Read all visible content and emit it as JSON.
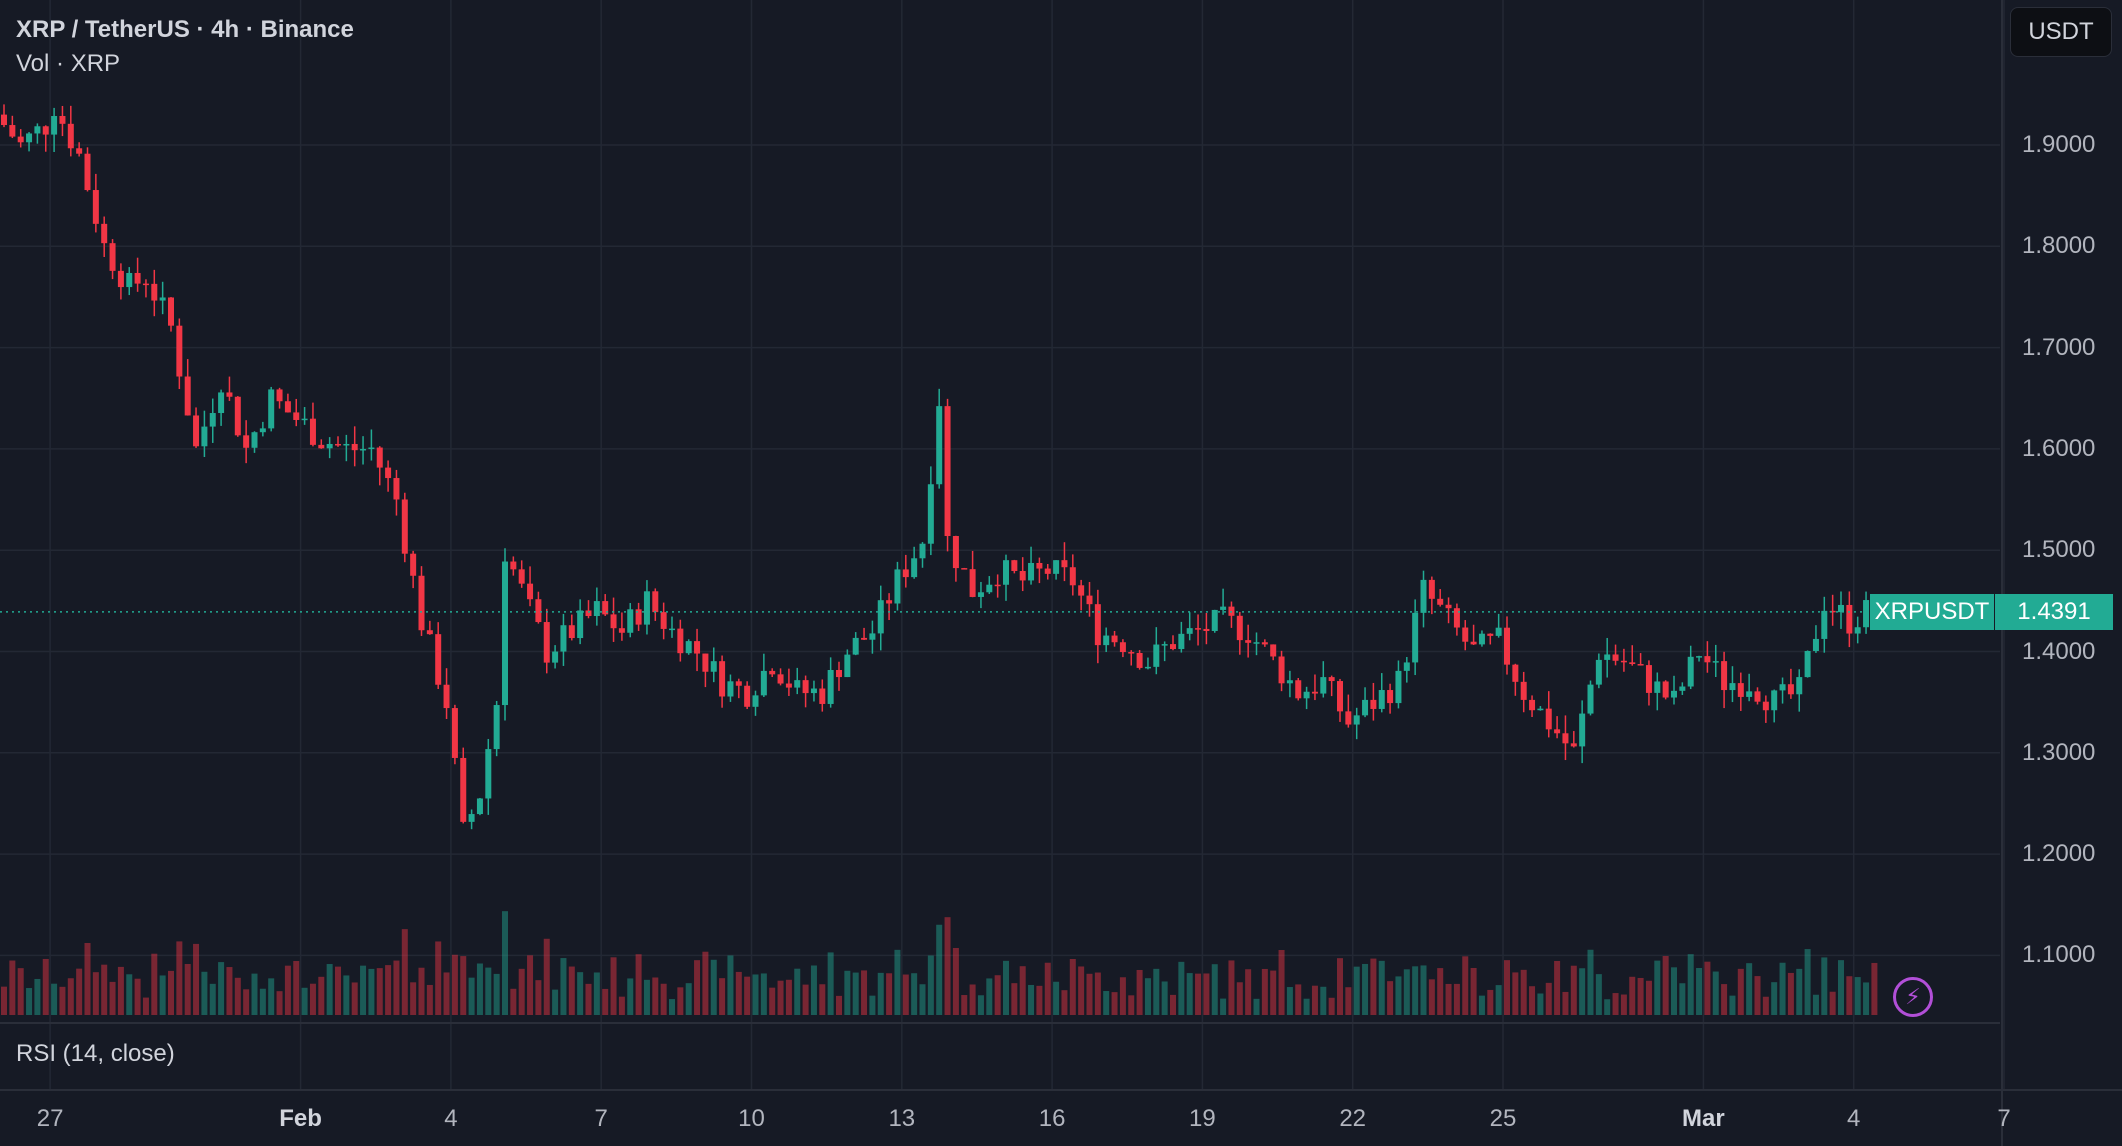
{
  "header": {
    "symbol_title": "XRP / TetherUS · 4h · Binance",
    "volume_title": "Vol · XRP",
    "currency_button": "USDT"
  },
  "rsi_pane": {
    "title": "RSI (14, close)"
  },
  "last_price": {
    "symbol_tag": "XRPUSDT",
    "value": "1.4391"
  },
  "price_axis": {
    "labels": [
      "1.9000",
      "1.8000",
      "1.7000",
      "1.6000",
      "1.5000",
      "1.4000",
      "1.3000",
      "1.2000",
      "1.1000"
    ]
  },
  "time_axis": {
    "labels": [
      {
        "text": "27",
        "bold": false
      },
      {
        "text": "Feb",
        "bold": true
      },
      {
        "text": "4",
        "bold": false
      },
      {
        "text": "7",
        "bold": false
      },
      {
        "text": "10",
        "bold": false
      },
      {
        "text": "13",
        "bold": false
      },
      {
        "text": "16",
        "bold": false
      },
      {
        "text": "19",
        "bold": false
      },
      {
        "text": "22",
        "bold": false
      },
      {
        "text": "25",
        "bold": false
      },
      {
        "text": "Mar",
        "bold": true
      },
      {
        "text": "4",
        "bold": false
      },
      {
        "text": "7",
        "bold": false
      }
    ]
  },
  "icons": {
    "lightning": "lightning-icon"
  },
  "colors": {
    "up": "#22ab94",
    "down": "#f23645",
    "background": "#161a25",
    "grid": "#232834",
    "accent_purple": "#b24fd8"
  },
  "chart_data": {
    "type": "candlestick",
    "timeframe": "4h",
    "ylim": [
      1.05,
      1.98
    ],
    "x_start": "Jan 26",
    "x_end": "Mar 7",
    "last_price": 1.4391,
    "anchors": [
      [
        "Jan 26 00:00",
        1.93
      ],
      [
        "Jan 26 12:00",
        1.9
      ],
      [
        "Jan 27 00:00",
        1.92
      ],
      [
        "Jan 27 04:00",
        1.94
      ],
      [
        "Jan 27 16:00",
        1.89
      ],
      [
        "Jan 28 04:00",
        1.8
      ],
      [
        "Jan 28 16:00",
        1.76
      ],
      [
        "Jan 29 00:00",
        1.77
      ],
      [
        "Jan 29 12:00",
        1.72
      ],
      [
        "Jan 30 00:00",
        1.6
      ],
      [
        "Jan 30 12:00",
        1.67
      ],
      [
        "Jan 31 00:00",
        1.6
      ],
      [
        "Jan 31 12:00",
        1.65
      ],
      [
        "Feb 01 00:00",
        1.63
      ],
      [
        "Feb 01 12:00",
        1.61
      ],
      [
        "Feb 02 00:00",
        1.6
      ],
      [
        "Feb 02 12:00",
        1.6
      ],
      [
        "Feb 03 00:00",
        1.55
      ],
      [
        "Feb 03 12:00",
        1.43
      ],
      [
        "Feb 04 00:00",
        1.35
      ],
      [
        "Feb 04 08:00",
        1.22
      ],
      [
        "Feb 04 16:00",
        1.26
      ],
      [
        "Feb 05 00:00",
        1.35
      ],
      [
        "Feb 05 04:00",
        1.5
      ],
      [
        "Feb 05 12:00",
        1.46
      ],
      [
        "Feb 06 00:00",
        1.4
      ],
      [
        "Feb 06 12:00",
        1.42
      ],
      [
        "Feb 07 00:00",
        1.44
      ],
      [
        "Feb 07 12:00",
        1.42
      ],
      [
        "Feb 08 00:00",
        1.45
      ],
      [
        "Feb 08 12:00",
        1.42
      ],
      [
        "Feb 09 00:00",
        1.4
      ],
      [
        "Feb 09 12:00",
        1.37
      ],
      [
        "Feb 10 00:00",
        1.36
      ],
      [
        "Feb 10 12:00",
        1.39
      ],
      [
        "Feb 11 00:00",
        1.36
      ],
      [
        "Feb 11 12:00",
        1.36
      ],
      [
        "Feb 12 00:00",
        1.4
      ],
      [
        "Feb 12 12:00",
        1.42
      ],
      [
        "Feb 13 00:00",
        1.47
      ],
      [
        "Feb 13 12:00",
        1.51
      ],
      [
        "Feb 13 20:00",
        1.65
      ],
      [
        "Feb 14 00:00",
        1.51
      ],
      [
        "Feb 14 12:00",
        1.46
      ],
      [
        "Feb 15 00:00",
        1.48
      ],
      [
        "Feb 15 12:00",
        1.47
      ],
      [
        "Feb 16 00:00",
        1.48
      ],
      [
        "Feb 16 12:00",
        1.47
      ],
      [
        "Feb 17 00:00",
        1.42
      ],
      [
        "Feb 17 12:00",
        1.41
      ],
      [
        "Feb 18 00:00",
        1.39
      ],
      [
        "Feb 18 12:00",
        1.41
      ],
      [
        "Feb 19 00:00",
        1.42
      ],
      [
        "Feb 19 12:00",
        1.43
      ],
      [
        "Feb 20 00:00",
        1.42
      ],
      [
        "Feb 20 12:00",
        1.39
      ],
      [
        "Feb 21 00:00",
        1.36
      ],
      [
        "Feb 21 12:00",
        1.37
      ],
      [
        "Feb 22 00:00",
        1.33
      ],
      [
        "Feb 22 12:00",
        1.35
      ],
      [
        "Feb 23 00:00",
        1.37
      ],
      [
        "Feb 23 12:00",
        1.46
      ],
      [
        "Feb 24 00:00",
        1.43
      ],
      [
        "Feb 24 12:00",
        1.4
      ],
      [
        "Feb 25 00:00",
        1.41
      ],
      [
        "Feb 25 12:00",
        1.36
      ],
      [
        "Feb 26 00:00",
        1.33
      ],
      [
        "Feb 26 12:00",
        1.3
      ],
      [
        "Feb 27 00:00",
        1.4
      ],
      [
        "Feb 27 12:00",
        1.39
      ],
      [
        "Feb 28 00:00",
        1.37
      ],
      [
        "Feb 28 12:00",
        1.35
      ],
      [
        "Mar 01 00:00",
        1.4
      ],
      [
        "Mar 01 12:00",
        1.37
      ],
      [
        "Mar 02 00:00",
        1.37
      ],
      [
        "Mar 02 12:00",
        1.35
      ],
      [
        "Mar 03 00:00",
        1.36
      ],
      [
        "Mar 03 12:00",
        1.45
      ],
      [
        "Mar 04 00:00",
        1.43
      ],
      [
        "Mar 04 08:00",
        1.4391
      ]
    ]
  }
}
